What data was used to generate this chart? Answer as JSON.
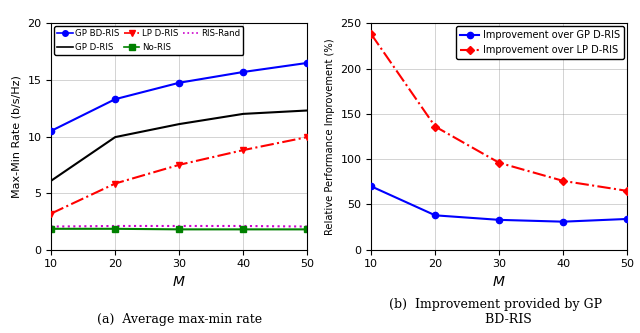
{
  "M": [
    10,
    20,
    30,
    40,
    50
  ],
  "gp_bd_ris": [
    10.5,
    13.3,
    14.75,
    15.7,
    16.5
  ],
  "gp_d_ris": [
    6.1,
    9.95,
    11.1,
    12.0,
    12.3
  ],
  "lp_d_ris": [
    3.2,
    5.85,
    7.5,
    8.8,
    9.95
  ],
  "no_ris": [
    1.85,
    1.85,
    1.8,
    1.8,
    1.8
  ],
  "ris_rand": [
    2.05,
    2.1,
    2.1,
    2.1,
    2.05
  ],
  "impr_gp": [
    70.0,
    38.0,
    33.0,
    31.0,
    34.0
  ],
  "impr_lp": [
    238.0,
    136.0,
    96.0,
    76.0,
    65.0
  ],
  "colors": {
    "gp_bd_ris": "#0000ff",
    "gp_d_ris": "#000000",
    "lp_d_ris": "#ff0000",
    "no_ris": "#008000",
    "ris_rand": "#cc00cc"
  },
  "subplot_a_ylabel": "Max-Min Rate (b/s/Hz)",
  "subplot_a_xlabel": "$M$",
  "subplot_b_ylabel": "Relative Performance Improvement (%)",
  "subplot_b_xlabel": "$M$",
  "subplot_a_ylim": [
    0,
    20
  ],
  "subplot_b_ylim": [
    0,
    250
  ],
  "subplot_a_yticks": [
    0,
    5,
    10,
    15,
    20
  ],
  "subplot_b_yticks": [
    0,
    50,
    100,
    150,
    200,
    250
  ],
  "xticks": [
    10,
    20,
    30,
    40,
    50
  ],
  "caption_a": "(a)  Average max-min rate",
  "caption_b": "(b)  Improvement provided by GP\n      BD-RIS"
}
